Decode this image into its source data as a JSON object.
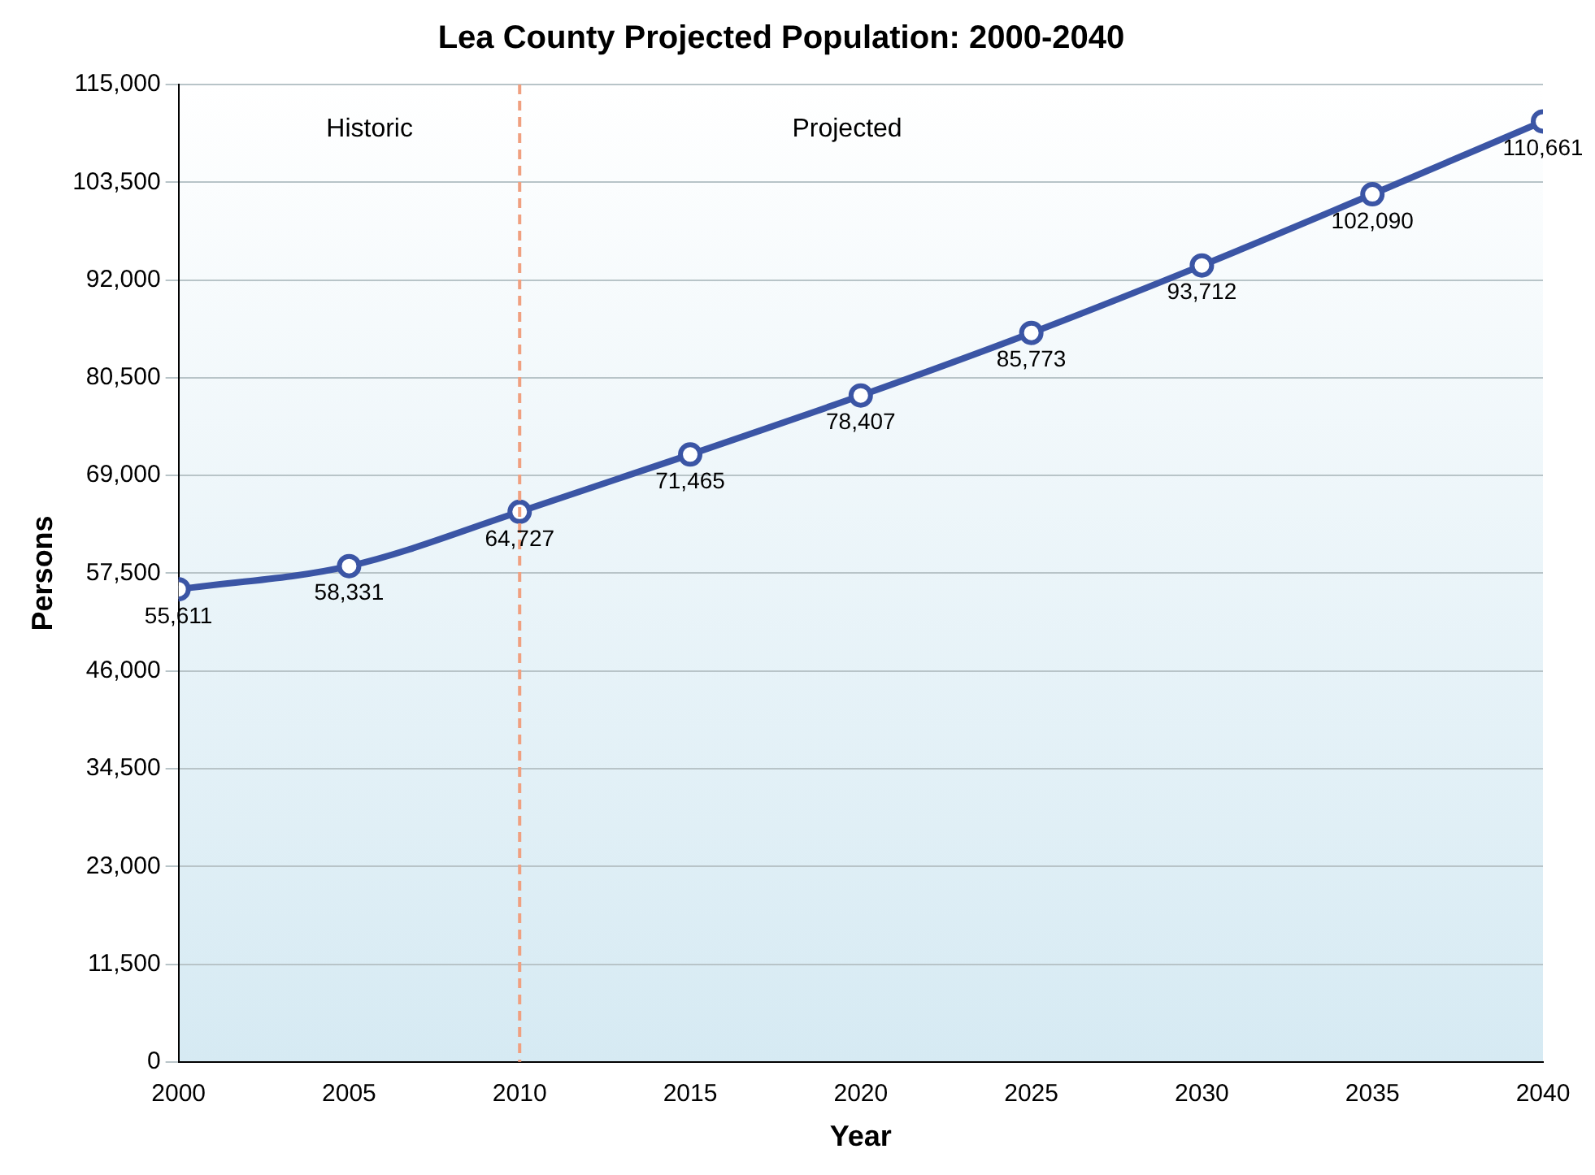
{
  "chart_data": {
    "type": "line",
    "title": "Lea County Projected Population: 2000-2040",
    "xlabel": "Year",
    "ylabel": "Persons",
    "x": [
      2000,
      2005,
      2010,
      2015,
      2020,
      2025,
      2030,
      2035,
      2040
    ],
    "series": [
      {
        "color": "#3b55a5",
        "values": [
          55611,
          58331,
          64727,
          71465,
          78407,
          85773,
          93712,
          102090,
          110661
        ],
        "value_labels": [
          "55,611",
          "58,331",
          "64,727",
          "71,465",
          "78,407",
          "85,773",
          "93,712",
          "102,090",
          "110,661"
        ]
      }
    ],
    "xlim": [
      2000,
      2040
    ],
    "xticks": [
      2000,
      2005,
      2010,
      2015,
      2020,
      2025,
      2030,
      2035,
      2040
    ],
    "ylim": [
      0,
      115000
    ],
    "yticks": [
      0,
      {
        "value": 11500,
        "label": "11,500"
      },
      {
        "value": 23000,
        "label": "23,000"
      },
      {
        "value": 34500,
        "label": "34,500"
      },
      {
        "value": 46000,
        "label": "46,000"
      },
      {
        "value": 57500,
        "label": "57,500"
      },
      {
        "value": 69000,
        "label": "69,000"
      },
      {
        "value": 80500,
        "label": "80,500"
      },
      {
        "value": 92000,
        "label": "92,000"
      },
      {
        "value": 103500,
        "label": "103,500"
      },
      {
        "value": 115000,
        "label": "115,000"
      }
    ],
    "grid": "y",
    "marker": "circle",
    "line_style": "solid",
    "legend": false,
    "ref_lines": [
      {
        "axis": "x",
        "value": 2010,
        "color": "#f0a080",
        "line_style": "dashed"
      }
    ],
    "annotations": [
      "Historic",
      "Projected"
    ]
  }
}
